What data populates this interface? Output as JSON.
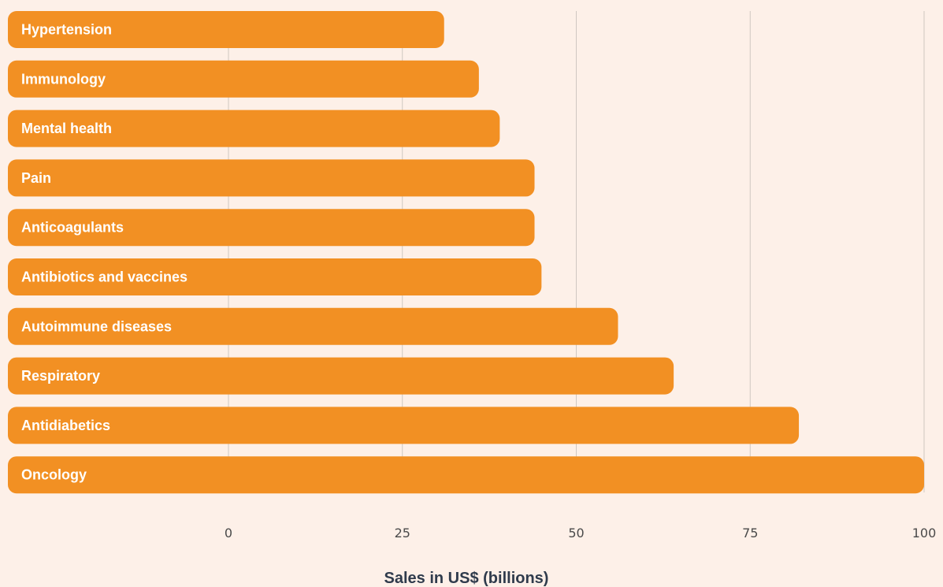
{
  "chart_data": {
    "type": "bar",
    "orientation": "horizontal",
    "categories": [
      "Hypertension",
      "Immunology",
      "Mental health",
      "Pain",
      "Anticoagulants",
      "Antibiotics and vaccines",
      "Autoimmune diseases",
      "Respiratory",
      "Antidiabetics",
      "Oncology"
    ],
    "values": [
      31,
      36,
      39,
      44,
      44,
      45,
      56,
      64,
      82,
      100
    ],
    "xlabel": "Sales in US$ (billions)",
    "xlim": [
      0,
      100
    ],
    "xticks": [
      0,
      25,
      50,
      75,
      100
    ],
    "grid": true,
    "legend": "none",
    "colors": {
      "bar": "#f29023",
      "background": "#fdf0e8",
      "grid": "#cfc7c1",
      "label": "#ffffff",
      "tick": "#4a4a4a",
      "axis_title": "#2f3b4c"
    }
  }
}
